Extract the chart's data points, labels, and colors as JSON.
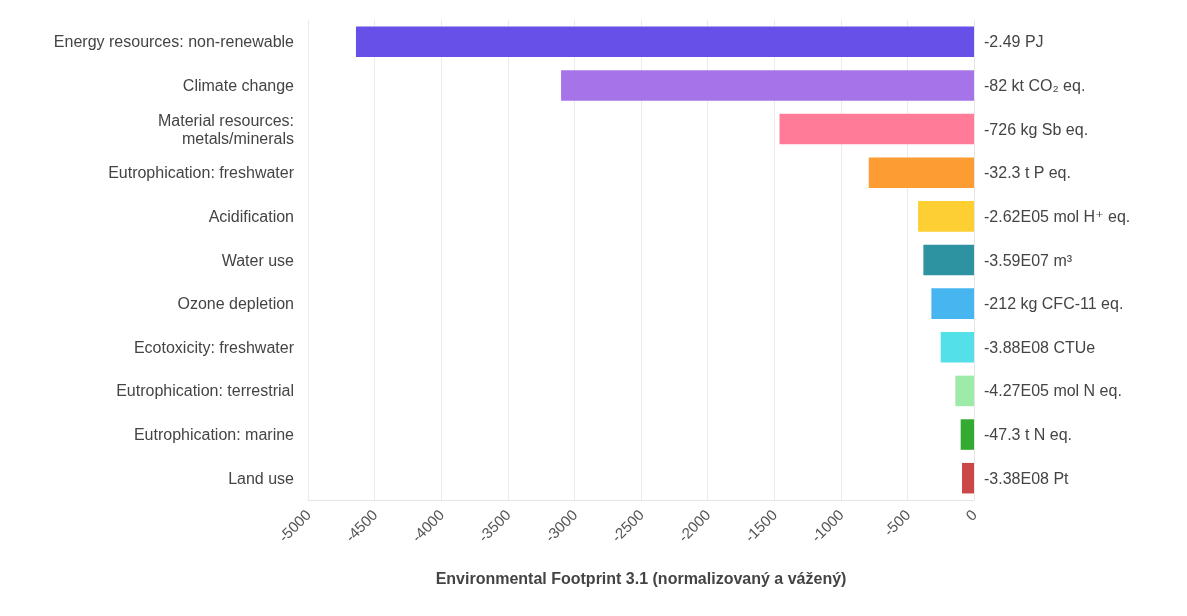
{
  "chart_data": {
    "type": "bar",
    "orientation": "horizontal",
    "xlabel": "Environmental Footprint 3.1 (normalizovaný a vážený)",
    "categories": [
      "Energy resources: non-renewable",
      "Climate change",
      "Material resources:\nmetals/minerals",
      "Eutrophication: freshwater",
      "Acidification",
      "Water use",
      "Ozone depletion",
      "Ecotoxicity: freshwater",
      "Eutrophication: terrestrial",
      "Eutrophication: marine",
      "Land use"
    ],
    "values": [
      -4640,
      -3100,
      -1460,
      -790,
      -420,
      -380,
      -320,
      -250,
      -140,
      -100,
      -90
    ],
    "colors": [
      "#6750e8",
      "#a674e8",
      "#ff7b97",
      "#fd9c33",
      "#fecf33",
      "#2e93a0",
      "#47b6f0",
      "#53e0e8",
      "#9eeaa8",
      "#33ab33",
      "#cc4848"
    ],
    "annotations": [
      "-2.49 PJ",
      "-82 kt CO₂ eq.",
      "-726 kg Sb eq.",
      "-32.3 t P eq.",
      "-2.62E05 mol H⁺ eq.",
      "-3.59E07 m³",
      "-212 kg CFC-11 eq.",
      "-3.88E08 CTUe",
      "-4.27E05 mol N eq.",
      "-47.3 t N eq.",
      "-3.38E08 Pt"
    ],
    "xlim": [
      -5000,
      0
    ],
    "xticks": [
      -5000,
      -4500,
      -4000,
      -3500,
      -3000,
      -2500,
      -2000,
      -1500,
      -1000,
      -500,
      0
    ],
    "grid": "x"
  }
}
